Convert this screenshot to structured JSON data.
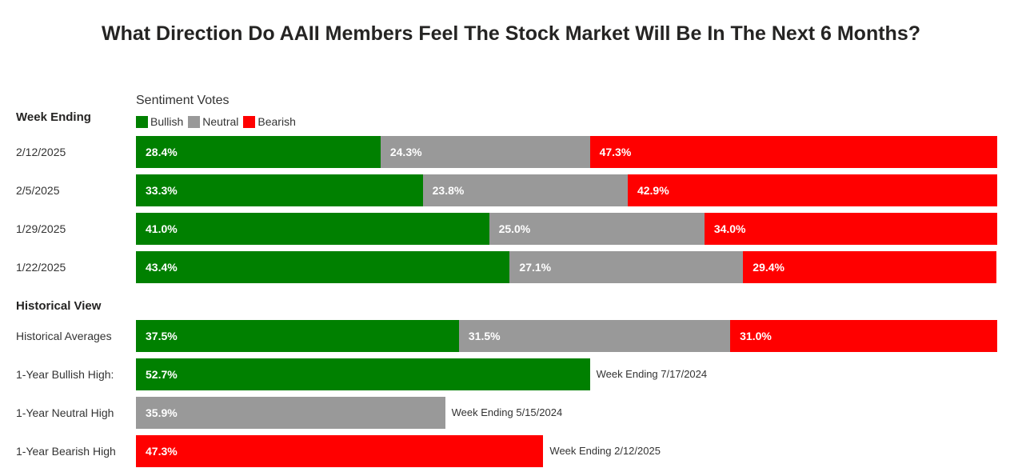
{
  "chart_data": {
    "type": "bar",
    "stacked": true,
    "orientation": "horizontal",
    "title": "What Direction Do AAII Members Feel The Stock Market Will Be In The Next 6 Months?",
    "legend_title": "Sentiment Votes",
    "legend": [
      {
        "name": "Bullish",
        "color": "#008000"
      },
      {
        "name": "Neutral",
        "color": "#999999"
      },
      {
        "name": "Bearish",
        "color": "#ff0000"
      }
    ],
    "sections": [
      {
        "header": "Week Ending",
        "rows": [
          {
            "label": "2/12/2025",
            "values": [
              28.4,
              24.3,
              47.3
            ],
            "labels": [
              "28.4%",
              "24.3%",
              "47.3%"
            ]
          },
          {
            "label": "2/5/2025",
            "values": [
              33.3,
              23.8,
              42.9
            ],
            "labels": [
              "33.3%",
              "23.8%",
              "42.9%"
            ]
          },
          {
            "label": "1/29/2025",
            "values": [
              41.0,
              25.0,
              34.0
            ],
            "labels": [
              "41.0%",
              "25.0%",
              "34.0%"
            ]
          },
          {
            "label": "1/22/2025",
            "values": [
              43.4,
              27.1,
              29.4
            ],
            "labels": [
              "43.4%",
              "27.1%",
              "29.4%"
            ]
          }
        ]
      },
      {
        "header": "Historical View",
        "rows": [
          {
            "label": "Historical Averages",
            "values": [
              37.5,
              31.5,
              31.0
            ],
            "labels": [
              "37.5%",
              "31.5%",
              "31.0%"
            ]
          },
          {
            "label": "1-Year Bullish High:",
            "values": [
              52.7,
              0,
              0
            ],
            "labels": [
              "52.7%",
              "",
              ""
            ],
            "note": "Week Ending 7/17/2024"
          },
          {
            "label": "1-Year Neutral High",
            "values": [
              0,
              35.9,
              0
            ],
            "labels": [
              "",
              "35.9%",
              ""
            ],
            "note": "Week Ending 5/15/2024"
          },
          {
            "label": "1-Year Bearish High",
            "values": [
              0,
              0,
              47.3
            ],
            "labels": [
              "",
              "",
              "47.3%"
            ],
            "note": "Week Ending 2/12/2025"
          }
        ]
      }
    ],
    "xlim": [
      0,
      100
    ]
  }
}
